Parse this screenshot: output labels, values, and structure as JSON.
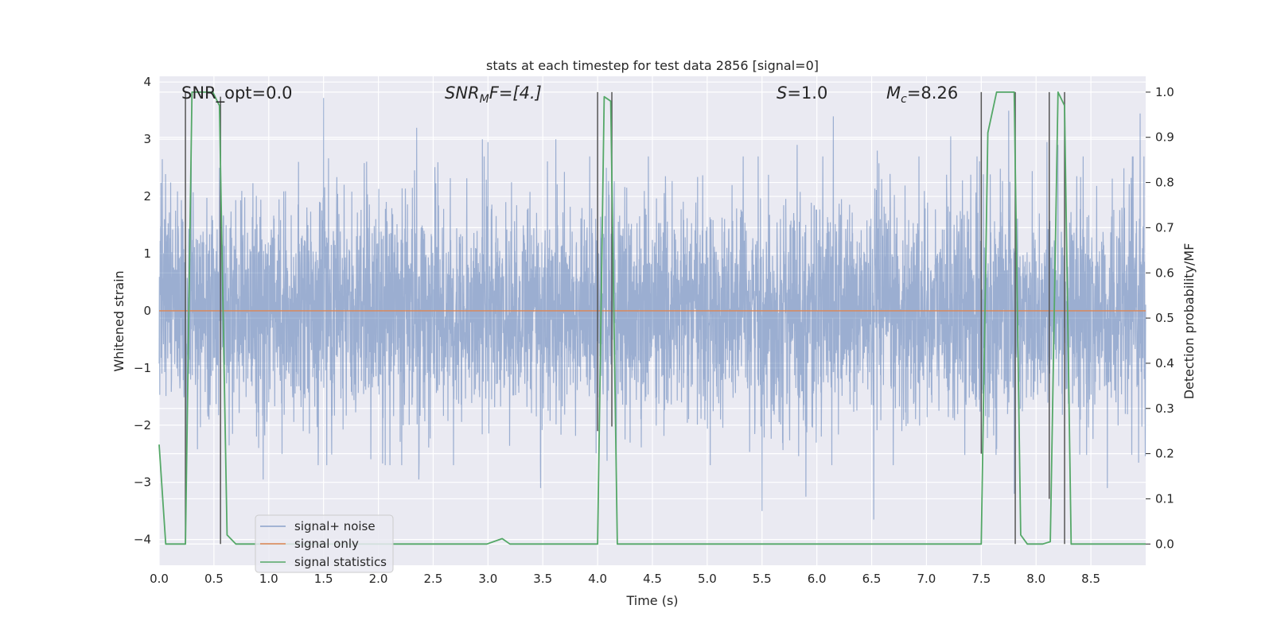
{
  "chart_data": {
    "type": "line",
    "title": "stats at each timestep for test data 2856 [signal=0]",
    "xlabel": "Time (s)",
    "ylabel": "Whitened strain",
    "y2label": "Detection probability/MF",
    "xlim": [
      0.0,
      9.0
    ],
    "ylim": [
      -4.45,
      4.1
    ],
    "y2lim": [
      -0.047,
      1.035
    ],
    "xticks": [
      "0.0",
      "0.5",
      "1.0",
      "1.5",
      "2.0",
      "2.5",
      "3.0",
      "3.5",
      "4.0",
      "4.5",
      "5.0",
      "5.5",
      "6.0",
      "6.5",
      "7.0",
      "7.5",
      "8.0",
      "8.5"
    ],
    "yticks": [
      "4",
      "3",
      "2",
      "1",
      "0",
      "−1",
      "−2",
      "−3",
      "−4"
    ],
    "y2ticks": [
      "1.0",
      "0.9",
      "0.8",
      "0.7",
      "0.6",
      "0.5",
      "0.4",
      "0.3",
      "0.2",
      "0.1",
      "0.0"
    ],
    "grid": true,
    "legend_position": "lower-left",
    "annotations": {
      "snr_opt": "SNR_opt=0.0",
      "snr_mf_base": "SNR",
      "snr_mf_sub": "M",
      "snr_mf_rest": "F=[4.]",
      "s_italic": "S",
      "s_rest": "=1.0",
      "mc_base": "M",
      "mc_sub": "c",
      "mc_rest": "=8.26"
    },
    "series": [
      {
        "name": "signal+ noise",
        "color": "#4c72b0",
        "description_kind": "noise",
        "sample_rate_hz": 1024,
        "typical_abs_max": 1.9,
        "peak_spikes": [
          [
            0.03,
            2.65
          ],
          [
            0.55,
            2.5
          ],
          [
            1.5,
            3.72
          ],
          [
            2.35,
            3.2
          ],
          [
            2.95,
            3.0
          ],
          [
            3.0,
            2.95
          ],
          [
            3.62,
            3.0
          ],
          [
            4.08,
            2.5
          ],
          [
            5.82,
            2.9
          ],
          [
            6.15,
            3.4
          ],
          [
            6.55,
            2.8
          ],
          [
            7.22,
            3.05
          ],
          [
            7.75,
            3.5
          ],
          [
            8.1,
            2.95
          ],
          [
            8.2,
            2.9
          ],
          [
            8.95,
            3.45
          ],
          [
            5.5,
            -3.5
          ],
          [
            6.52,
            -3.65
          ],
          [
            3.48,
            -3.1
          ],
          [
            0.95,
            -2.95
          ],
          [
            5.9,
            -3.25
          ],
          [
            7.8,
            -3.2
          ],
          [
            8.65,
            -3.1
          ],
          [
            2.37,
            -2.95
          ]
        ]
      },
      {
        "name": "signal only",
        "color": "#dd8452",
        "values_constant": 0.0
      },
      {
        "name": "signal statistics",
        "color": "#55a868",
        "axis": "right",
        "x": [
          0.0,
          0.06,
          0.24,
          0.3,
          0.49,
          0.55,
          0.62,
          0.7,
          2.99,
          3.06,
          3.13,
          3.2,
          4.0,
          4.06,
          4.12,
          4.18,
          7.5,
          7.56,
          7.64,
          7.8,
          7.86,
          7.92,
          8.06,
          8.13,
          8.2,
          8.26,
          8.32,
          9.0
        ],
        "y": [
          0.22,
          0.0,
          0.0,
          1.0,
          1.0,
          0.97,
          0.02,
          0.0,
          0.0,
          0.006,
          0.012,
          0.0,
          0.0,
          0.99,
          0.98,
          0.0,
          0.0,
          0.91,
          1.0,
          1.0,
          0.02,
          0.0,
          0.0,
          0.005,
          1.0,
          0.97,
          0.0,
          0.0
        ]
      }
    ],
    "markers_vertical": [
      {
        "x": 0.24,
        "ymin": 0.0,
        "ymax": 1.0
      },
      {
        "x": 0.56,
        "ymin": 0.0,
        "ymax": 0.99
      },
      {
        "x": 4.0,
        "ymin": 0.25,
        "ymax": 1.0
      },
      {
        "x": 4.13,
        "ymin": 0.26,
        "ymax": 1.0
      },
      {
        "x": 7.5,
        "ymin": 0.2,
        "ymax": 1.0
      },
      {
        "x": 7.81,
        "ymin": 0.0,
        "ymax": 1.0
      },
      {
        "x": 8.12,
        "ymin": 0.1,
        "ymax": 1.0
      },
      {
        "x": 8.26,
        "ymin": 0.0,
        "ymax": 1.0
      }
    ]
  }
}
